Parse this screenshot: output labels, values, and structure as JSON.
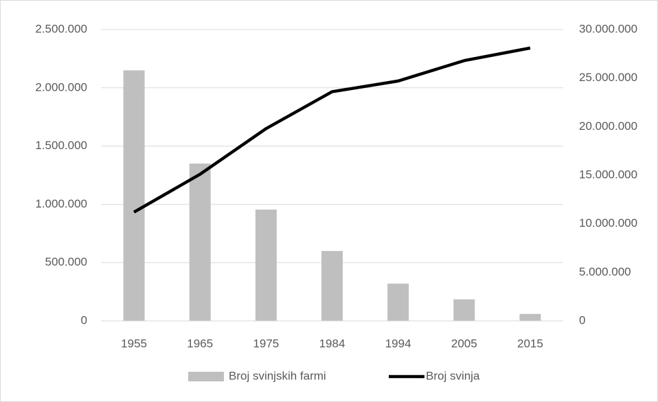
{
  "chart_data": {
    "type": "bar_line",
    "categories": [
      "1955",
      "1965",
      "1975",
      "1984",
      "1994",
      "2005",
      "2015"
    ],
    "series": [
      {
        "name": "Broj svinjskih farmi",
        "type": "bar",
        "color": "#bfbfbf",
        "values": [
          2150000,
          1350000,
          955000,
          600000,
          320000,
          185000,
          60000
        ]
      },
      {
        "name": "Broj svinja",
        "type": "line",
        "color": "#000000",
        "axis": "y2",
        "values": [
          11200000,
          15100000,
          19800000,
          23600000,
          24700000,
          26800000,
          28100000
        ]
      }
    ],
    "ylim": [
      0,
      2500000
    ],
    "yticks": [
      0,
      {
        "value": 500000,
        "label": "500.000"
      },
      {
        "value": 1000000,
        "label": "1.000.000"
      },
      {
        "value": 1500000,
        "label": "1.500.000"
      },
      {
        "value": 2000000,
        "label": "2.000.000"
      },
      {
        "value": 2500000,
        "label": "2.500.000"
      }
    ],
    "y2lim": [
      0,
      30000000
    ],
    "y2ticks": [
      0,
      {
        "value": 5000000,
        "label": "5.000.000"
      },
      {
        "value": 10000000,
        "label": "10.000.000"
      },
      {
        "value": 15000000,
        "label": "15.000.000"
      },
      {
        "value": 20000000,
        "label": "20.000.000"
      },
      {
        "value": 25000000,
        "label": "25.000.000"
      },
      {
        "value": 30000000,
        "label": "30.000.000"
      }
    ],
    "grid": true,
    "legend": "bottom"
  }
}
